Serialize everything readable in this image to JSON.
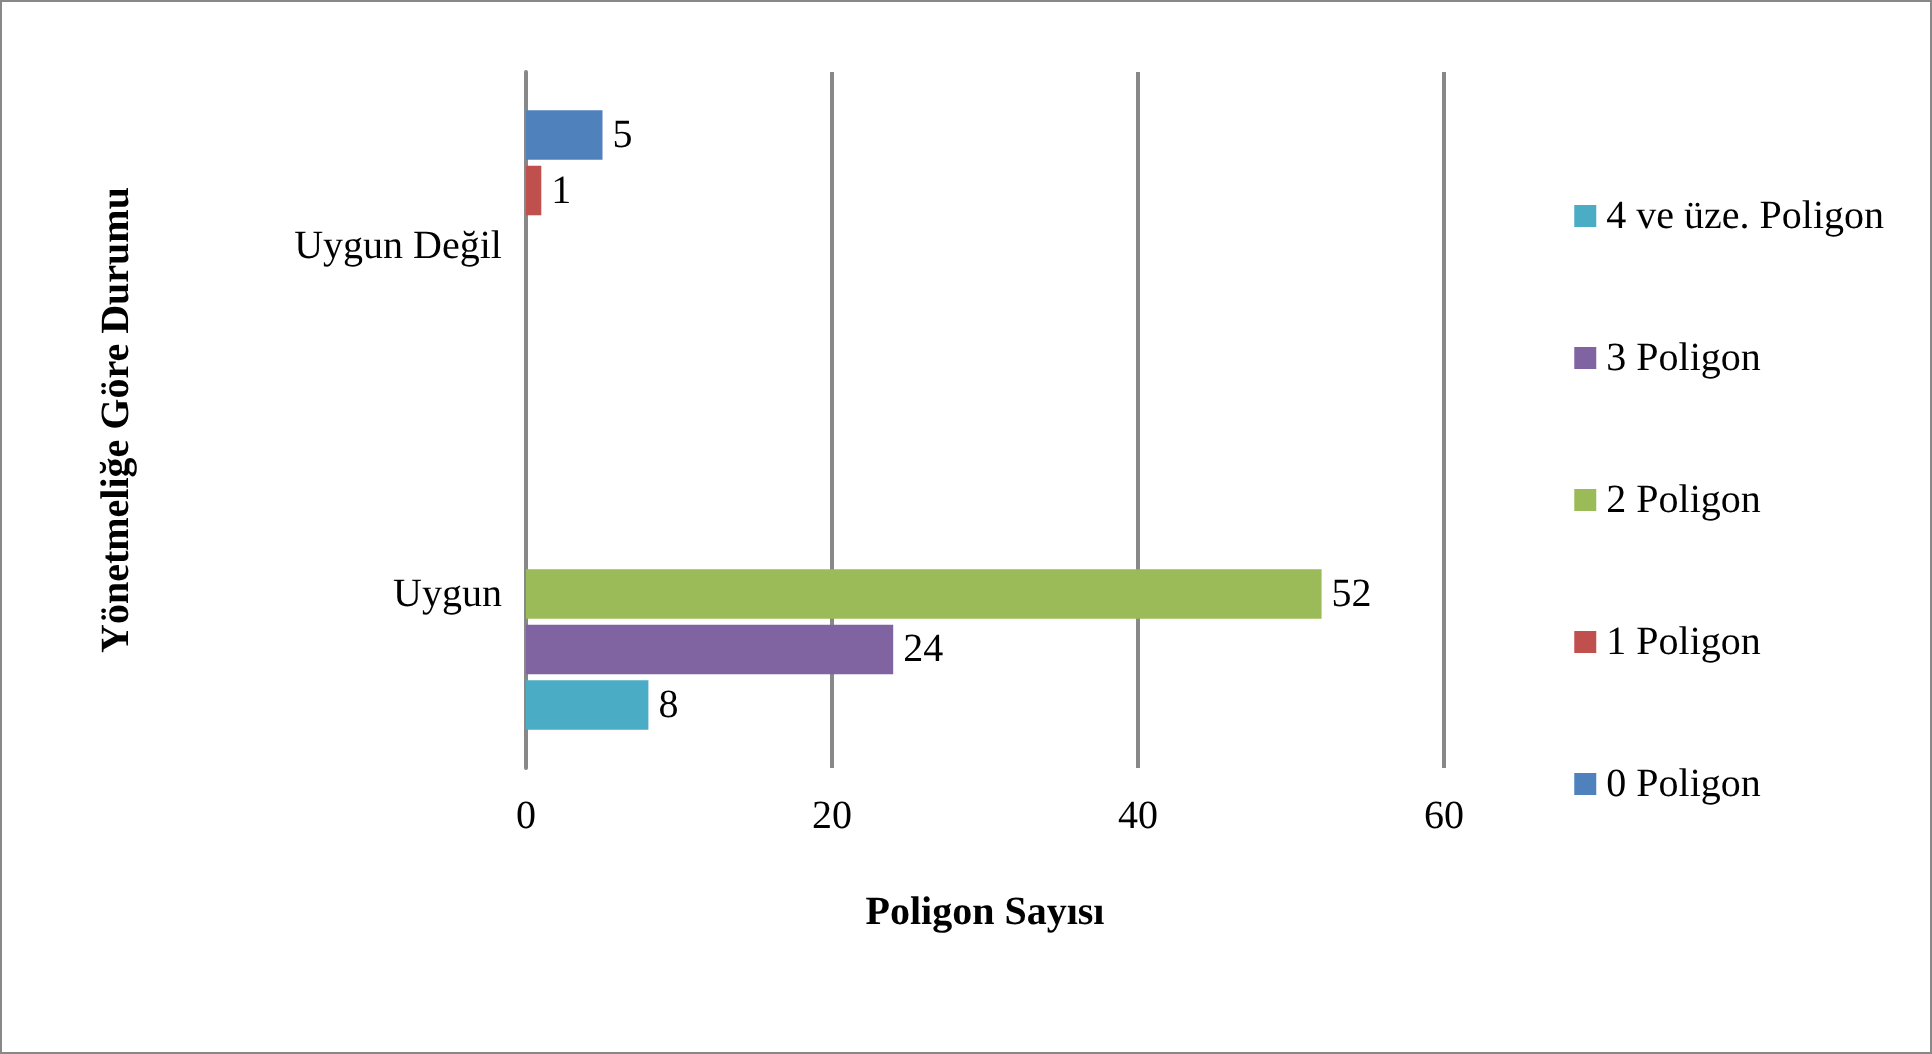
{
  "chart_data": {
    "type": "bar",
    "orientation": "horizontal",
    "xlabel": "Poligon Sayısı",
    "ylabel": "Yönetmeliğe Göre Durumu",
    "categories": [
      "Uygun Değil",
      "Uygun"
    ],
    "series": [
      {
        "name": "0 Poligon",
        "color": "#4f81bd",
        "values": [
          5,
          null
        ]
      },
      {
        "name": "1 Poligon",
        "color": "#c0504d",
        "values": [
          1,
          null
        ]
      },
      {
        "name": "2 Poligon",
        "color": "#9bbb59",
        "values": [
          null,
          52
        ]
      },
      {
        "name": "3 Poligon",
        "color": "#8064a2",
        "values": [
          null,
          24
        ]
      },
      {
        "name": "4 ve üze. Poligon",
        "color": "#4bacc6",
        "values": [
          null,
          8
        ]
      }
    ],
    "xlim": [
      0,
      60
    ],
    "xticks": [
      0,
      20,
      40,
      60
    ],
    "grid": "x",
    "legend": "right",
    "data_labels": true
  }
}
